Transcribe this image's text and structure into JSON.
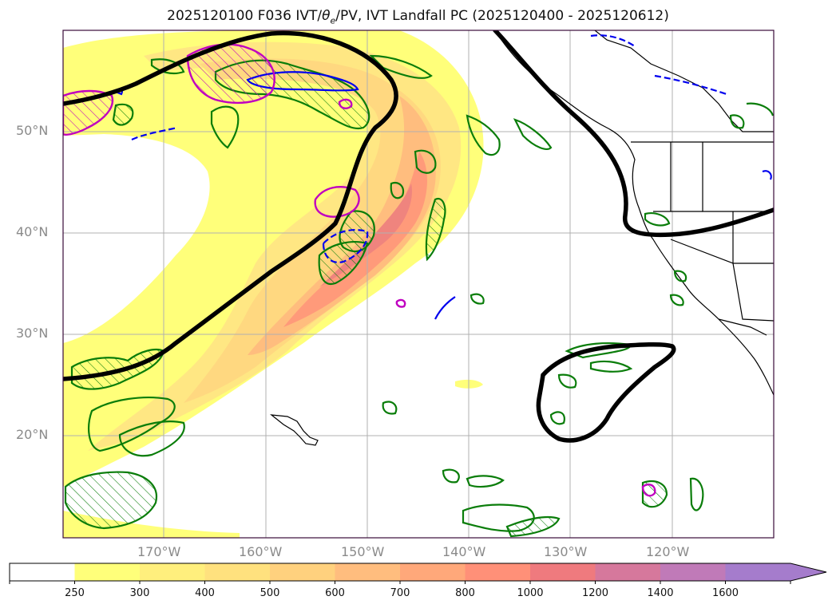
{
  "title": "2025120100 F036 IVT/θe/PV, IVT Landfall PC (2025120400 - 2025120612)",
  "title_parts": {
    "prefix": "2025120100 F036 IVT/",
    "theta": "θ",
    "theta_sub": "e",
    "suffix": "/PV, IVT Landfall PC (2025120400 - 2025120612)"
  },
  "map": {
    "lon_range": [
      -180,
      -110
    ],
    "lat_range": [
      10,
      60
    ],
    "lon_ticks": [
      {
        "lon": -170,
        "label": "170°W"
      },
      {
        "lon": -160,
        "label": "160°W"
      },
      {
        "lon": -150,
        "label": "150°W"
      },
      {
        "lon": -140,
        "label": "140°W"
      },
      {
        "lon": -130,
        "label": "130°W"
      },
      {
        "lon": -120,
        "label": "120°W"
      }
    ],
    "lat_ticks": [
      {
        "lat": 50,
        "label": "50°N"
      },
      {
        "lat": 40,
        "label": "40°N"
      },
      {
        "lat": 30,
        "label": "30°N"
      },
      {
        "lat": 20,
        "label": "20°N"
      }
    ],
    "colors": {
      "landfall_contour": "#000000",
      "theta_e_contour": "#0a7d0a",
      "pv_contour": "#0000ee",
      "magenta_contour": "#c000c0",
      "gridline": "#b0b0b0",
      "frame": "#3a0a3a"
    }
  },
  "colorbar": {
    "levels": [
      "250",
      "300",
      "400",
      "500",
      "600",
      "700",
      "800",
      "1000",
      "1200",
      "1400",
      "1600"
    ],
    "colors": [
      "#ffffff",
      "#ffff7a",
      "#ffef7d",
      "#ffe17e",
      "#ffd17e",
      "#ffbd7e",
      "#ffa87a",
      "#ff9078",
      "#ef7a7e",
      "#d6789c",
      "#c07ab8",
      "#a57ccc"
    ],
    "extend": "max"
  }
}
